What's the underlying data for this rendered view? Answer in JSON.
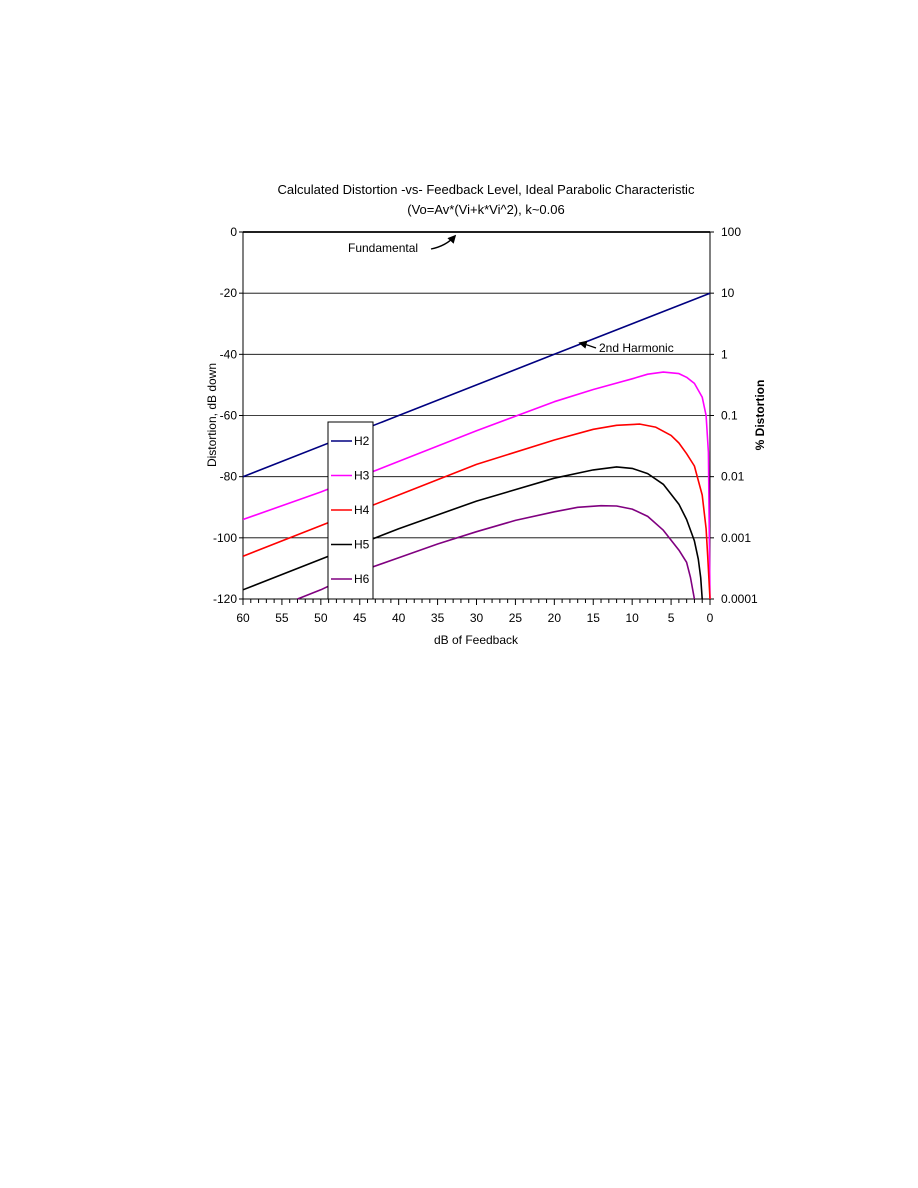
{
  "chart_data": {
    "type": "line",
    "title": "Calculated Distortion -vs- Feedback Level, Ideal Parabolic Characteristic",
    "subtitle": "(Vo=Av*(Vi+k*Vi^2), k~0.06",
    "xlabel": "dB of Feedback",
    "ylabel": "Distortion, dB down",
    "y2label": "% Distortion",
    "xlim": [
      60,
      0
    ],
    "ylim": [
      -120,
      0
    ],
    "x_reversed": true,
    "x_ticks": [
      "60",
      "55",
      "50",
      "45",
      "40",
      "35",
      "30",
      "25",
      "20",
      "15",
      "10",
      "5",
      "0"
    ],
    "y_ticks": [
      "0",
      "-20",
      "-40",
      "-60",
      "-80",
      "-100",
      "-120"
    ],
    "y2_ticks": [
      "100",
      "10",
      "1",
      "0.1",
      "0.01",
      "0.001",
      "0.0001"
    ],
    "grid": "horizontal",
    "annotations": [
      {
        "text": "Fundamental",
        "x": 32,
        "y": 0
      },
      {
        "text": "2nd Harmonic",
        "x": 18,
        "y": -37
      }
    ],
    "legend": {
      "placement": "left-inside",
      "entries": [
        "H2",
        "H3",
        "H4",
        "H5",
        "H6"
      ]
    },
    "series": [
      {
        "name": "Fundamental",
        "color": "#000000",
        "legend": false,
        "x": [
          60,
          0
        ],
        "y": [
          0,
          0
        ]
      },
      {
        "name": "H2",
        "color": "#000080",
        "legend": true,
        "x": [
          60,
          40,
          20,
          0
        ],
        "y": [
          -80,
          -60,
          -40,
          -20
        ]
      },
      {
        "name": "H3",
        "color": "#ff00ff",
        "legend": true,
        "x": [
          60,
          50,
          40,
          30,
          20,
          15,
          10,
          8,
          6,
          4,
          3,
          2,
          1,
          0.5,
          0.2,
          0
        ],
        "y": [
          -94,
          -85,
          -75,
          -65,
          -55.5,
          -51.5,
          -48,
          -46.5,
          -45.8,
          -46.3,
          -47.5,
          -49.5,
          -54,
          -60,
          -72,
          -120
        ]
      },
      {
        "name": "H4",
        "color": "#ff0000",
        "legend": true,
        "x": [
          60,
          50,
          40,
          30,
          20,
          15,
          12,
          9,
          7,
          5,
          4,
          3,
          2,
          1,
          0.5,
          0.3,
          0
        ],
        "y": [
          -106,
          -96,
          -86,
          -76,
          -68,
          -64.5,
          -63.2,
          -62.8,
          -63.8,
          -66.5,
          -69,
          -72.5,
          -76.5,
          -86,
          -97,
          -106,
          -120
        ]
      },
      {
        "name": "H5",
        "color": "#000000",
        "legend": true,
        "x": [
          60,
          50,
          40,
          30,
          20,
          15,
          12,
          10,
          8,
          6,
          4,
          3,
          2,
          1.5,
          1.2,
          1
        ],
        "y": [
          -117,
          -107,
          -97,
          -88,
          -80.5,
          -77.8,
          -76.8,
          -77.3,
          -79,
          -82.5,
          -89,
          -94,
          -101,
          -107,
          -113,
          -120
        ]
      },
      {
        "name": "H6",
        "color": "#800080",
        "legend": true,
        "x": [
          53,
          50,
          45,
          40,
          35,
          30,
          25,
          20,
          17,
          14,
          12,
          10,
          8,
          6,
          4,
          3,
          2.5,
          2
        ],
        "y": [
          -120,
          -117,
          -111,
          -106.5,
          -102,
          -98,
          -94.3,
          -91.5,
          -90,
          -89.5,
          -89.6,
          -90.6,
          -93,
          -97.5,
          -104,
          -108,
          -113,
          -120
        ]
      }
    ]
  }
}
